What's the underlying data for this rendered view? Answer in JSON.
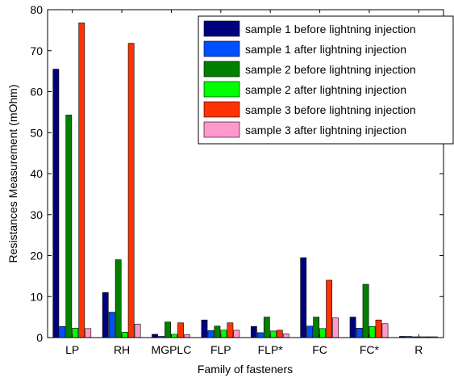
{
  "chart_data": {
    "type": "bar",
    "title": "",
    "xlabel": "Family of fasteners",
    "ylabel": "Resistances Measurement (mOhm)",
    "ylim": [
      0,
      80
    ],
    "yticks": [
      0,
      10,
      20,
      30,
      40,
      50,
      60,
      70,
      80
    ],
    "grid": false,
    "legend_position": "top-right",
    "categories": [
      "LP",
      "RH",
      "MGPLC",
      "FLP",
      "FLP*",
      "FC",
      "FC*",
      "R"
    ],
    "series": [
      {
        "name": "sample 1 before lightning injection",
        "color": "#00007f",
        "values": [
          65.5,
          11.0,
          0.8,
          4.3,
          2.7,
          19.5,
          5.0,
          0.3
        ]
      },
      {
        "name": "sample 1 after lightning injection",
        "color": "#0050ff",
        "values": [
          2.7,
          6.2,
          0.3,
          1.7,
          1.2,
          2.8,
          2.3,
          0.3
        ]
      },
      {
        "name": "sample 2 before lightning injection",
        "color": "#007f00",
        "values": [
          54.3,
          19.0,
          3.8,
          2.8,
          5.0,
          5.0,
          13.0,
          0.2
        ]
      },
      {
        "name": "sample 2 after lightning injection",
        "color": "#00ff00",
        "values": [
          2.3,
          1.3,
          0.8,
          1.8,
          1.6,
          2.2,
          2.7,
          0.2
        ]
      },
      {
        "name": "sample 3 before lightning injection",
        "color": "#ff3300",
        "values": [
          76.8,
          71.8,
          3.6,
          3.6,
          1.8,
          14.0,
          4.3,
          0.2
        ]
      },
      {
        "name": "sample 3 after lightning injection",
        "color": "#ff99cc",
        "values": [
          2.2,
          3.3,
          0.7,
          1.8,
          0.9,
          4.8,
          3.4,
          0.2
        ]
      }
    ]
  }
}
